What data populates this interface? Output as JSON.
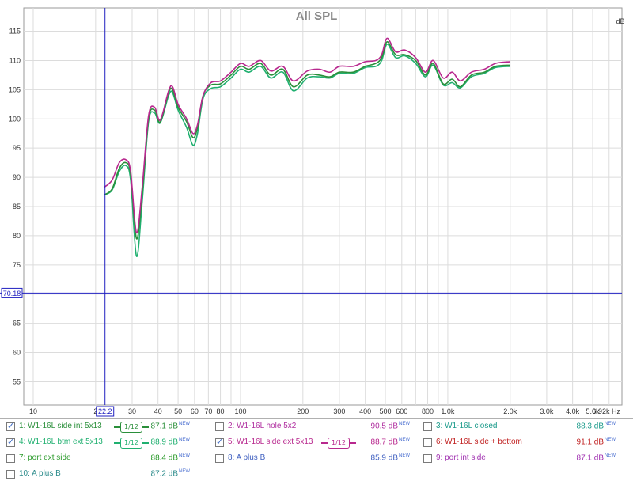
{
  "chart_data": {
    "type": "line",
    "title": "All SPL",
    "ylabel": "dB",
    "xlabel": "Hz",
    "x_scale": "log",
    "xlim": [
      9,
      6920
    ],
    "ylim": [
      51,
      119
    ],
    "grid": true,
    "y_ticks": [
      55,
      60,
      65,
      70,
      75,
      80,
      85,
      90,
      95,
      100,
      105,
      110,
      115
    ],
    "x_tick_labels": [
      {
        "v": 10,
        "t": "10"
      },
      {
        "v": 20,
        "t": "2"
      },
      {
        "v": 30,
        "t": "30"
      },
      {
        "v": 40,
        "t": "40"
      },
      {
        "v": 50,
        "t": "50"
      },
      {
        "v": 60,
        "t": "60"
      },
      {
        "v": 70,
        "t": "70"
      },
      {
        "v": 80,
        "t": "80"
      },
      {
        "v": 100,
        "t": "100"
      },
      {
        "v": 200,
        "t": "200"
      },
      {
        "v": 300,
        "t": "300"
      },
      {
        "v": 400,
        "t": "400"
      },
      {
        "v": 500,
        "t": "500"
      },
      {
        "v": 600,
        "t": "600"
      },
      {
        "v": 800,
        "t": "800"
      },
      {
        "v": 1000,
        "t": "1.0k"
      },
      {
        "v": 2000,
        "t": "2.0k"
      },
      {
        "v": 3000,
        "t": "3.0k"
      },
      {
        "v": 4000,
        "t": "4.0k"
      },
      {
        "v": 5000,
        "t": "5.0k"
      },
      {
        "v": 6920,
        "t": "6.92k Hz"
      }
    ],
    "cursor": {
      "x": 22.2,
      "x_label": "22.2",
      "y": 70.18,
      "y_label": "70.18"
    },
    "series": [
      {
        "name": "W1-16L side ext 5x13",
        "color": "#b8288e",
        "points": [
          [
            22,
            88.3
          ],
          [
            24,
            89.5
          ],
          [
            26,
            92.5
          ],
          [
            28,
            93
          ],
          [
            29.5,
            91
          ],
          [
            31.5,
            80.5
          ],
          [
            33.5,
            88
          ],
          [
            36,
            100.5
          ],
          [
            38.5,
            102
          ],
          [
            41,
            99.8
          ],
          [
            45,
            104.8
          ],
          [
            47,
            105.5
          ],
          [
            50,
            102.5
          ],
          [
            55,
            100
          ],
          [
            59,
            97.5
          ],
          [
            62,
            99
          ],
          [
            66,
            104
          ],
          [
            72,
            106.2
          ],
          [
            80,
            106.5
          ],
          [
            90,
            108
          ],
          [
            100,
            109.5
          ],
          [
            110,
            109
          ],
          [
            125,
            110
          ],
          [
            140,
            108.2
          ],
          [
            160,
            109
          ],
          [
            180,
            106.5
          ],
          [
            210,
            108.2
          ],
          [
            240,
            108.5
          ],
          [
            270,
            108
          ],
          [
            300,
            109
          ],
          [
            350,
            109
          ],
          [
            400,
            109.8
          ],
          [
            450,
            110
          ],
          [
            480,
            111
          ],
          [
            510,
            113.8
          ],
          [
            560,
            111.5
          ],
          [
            620,
            111.8
          ],
          [
            700,
            110.5
          ],
          [
            780,
            108
          ],
          [
            850,
            110
          ],
          [
            950,
            107
          ],
          [
            1050,
            108
          ],
          [
            1150,
            106.5
          ],
          [
            1300,
            108
          ],
          [
            1500,
            108.5
          ],
          [
            1700,
            109.5
          ],
          [
            2000,
            109.8
          ]
        ]
      },
      {
        "name": "W1-16L side int 5x13",
        "color": "#2a8f3a",
        "points": [
          [
            22,
            87
          ],
          [
            24,
            88
          ],
          [
            26,
            91.5
          ],
          [
            28,
            92.5
          ],
          [
            29.5,
            90.5
          ],
          [
            31.5,
            79.5
          ],
          [
            33.5,
            87
          ],
          [
            36,
            100
          ],
          [
            38.5,
            101.5
          ],
          [
            41,
            99.5
          ],
          [
            45,
            104.5
          ],
          [
            47,
            105
          ],
          [
            50,
            102
          ],
          [
            55,
            99.5
          ],
          [
            59,
            96.8
          ],
          [
            62,
            98.5
          ],
          [
            66,
            104
          ],
          [
            72,
            105.8
          ],
          [
            80,
            106
          ],
          [
            90,
            107.5
          ],
          [
            100,
            109
          ],
          [
            110,
            108.5
          ],
          [
            125,
            109.5
          ],
          [
            140,
            107.5
          ],
          [
            160,
            108.5
          ],
          [
            180,
            105.5
          ],
          [
            210,
            107.5
          ],
          [
            240,
            107.5
          ],
          [
            270,
            107.2
          ],
          [
            300,
            108
          ],
          [
            350,
            108
          ],
          [
            400,
            109
          ],
          [
            450,
            109.5
          ],
          [
            480,
            110.5
          ],
          [
            510,
            113.2
          ],
          [
            560,
            111
          ],
          [
            620,
            111
          ],
          [
            700,
            110
          ],
          [
            780,
            107.5
          ],
          [
            850,
            109.5
          ],
          [
            950,
            106
          ],
          [
            1050,
            106.8
          ],
          [
            1150,
            105.5
          ],
          [
            1300,
            107.5
          ],
          [
            1500,
            108
          ],
          [
            1700,
            109
          ],
          [
            2000,
            109.2
          ]
        ]
      },
      {
        "name": "W1-16L btm ext 5x13",
        "color": "#20b070",
        "points": [
          [
            22,
            87
          ],
          [
            24,
            87.8
          ],
          [
            26,
            91
          ],
          [
            28,
            92
          ],
          [
            29.5,
            89.5
          ],
          [
            31.5,
            76.5
          ],
          [
            33.5,
            85.5
          ],
          [
            36,
            99.5
          ],
          [
            38.5,
            101
          ],
          [
            41,
            99.3
          ],
          [
            45,
            104
          ],
          [
            47,
            104.5
          ],
          [
            50,
            101.5
          ],
          [
            55,
            98.5
          ],
          [
            59,
            95.5
          ],
          [
            62,
            97.5
          ],
          [
            66,
            103.5
          ],
          [
            72,
            105.2
          ],
          [
            80,
            105.5
          ],
          [
            90,
            107
          ],
          [
            100,
            108.5
          ],
          [
            110,
            108
          ],
          [
            125,
            109
          ],
          [
            140,
            107
          ],
          [
            160,
            108
          ],
          [
            180,
            104.8
          ],
          [
            210,
            107
          ],
          [
            240,
            107.2
          ],
          [
            270,
            107
          ],
          [
            300,
            107.8
          ],
          [
            350,
            107.8
          ],
          [
            400,
            108.8
          ],
          [
            450,
            109
          ],
          [
            480,
            110
          ],
          [
            510,
            112.8
          ],
          [
            560,
            110.5
          ],
          [
            620,
            110.8
          ],
          [
            700,
            109.5
          ],
          [
            780,
            107.2
          ],
          [
            850,
            109.2
          ],
          [
            950,
            105.8
          ],
          [
            1050,
            106.2
          ],
          [
            1150,
            105.3
          ],
          [
            1300,
            107.2
          ],
          [
            1500,
            107.8
          ],
          [
            1700,
            108.8
          ],
          [
            2000,
            109
          ]
        ]
      }
    ]
  },
  "legend": [
    {
      "label": "1: W1-16L side int 5x13",
      "value": "87.1 dB",
      "badge": "NEW",
      "checked": true,
      "color": "#2a8f3a",
      "smoothing": "1/12"
    },
    {
      "label": "2: W1-16L hole 5x2",
      "value": "90.5 dB",
      "badge": "NEW",
      "checked": false,
      "color": "#b030a0"
    },
    {
      "label": "3: W1-16L closed",
      "value": "88.3 dB",
      "badge": "NEW",
      "checked": false,
      "color": "#1a9a8a"
    },
    {
      "label": "4: W1-16L btm ext 5x13",
      "value": "88.9 dB",
      "badge": "NEW",
      "checked": true,
      "color": "#20b070",
      "smoothing": "1/12"
    },
    {
      "label": "5: W1-16L side ext 5x13",
      "value": "88.7 dB",
      "badge": "NEW",
      "checked": true,
      "color": "#b8288e",
      "smoothing": "1/12"
    },
    {
      "label": "6: W1-16L side + bottom",
      "value": "91.1 dB",
      "badge": "NEW",
      "checked": false,
      "color": "#c02020"
    },
    {
      "label": "7: port ext side",
      "value": "88.4 dB",
      "badge": "NEW",
      "checked": false,
      "color": "#2a9a2a"
    },
    {
      "label": "8: A plus B",
      "value": "85.9 dB",
      "badge": "NEW",
      "checked": false,
      "color": "#4060c0"
    },
    {
      "label": "9: port int side",
      "value": "87.1 dB",
      "badge": "NEW",
      "checked": false,
      "color": "#a030b0"
    },
    {
      "label": "10: A plus B",
      "value": "87.2 dB",
      "badge": "NEW",
      "checked": false,
      "color": "#2a8a8a"
    }
  ]
}
